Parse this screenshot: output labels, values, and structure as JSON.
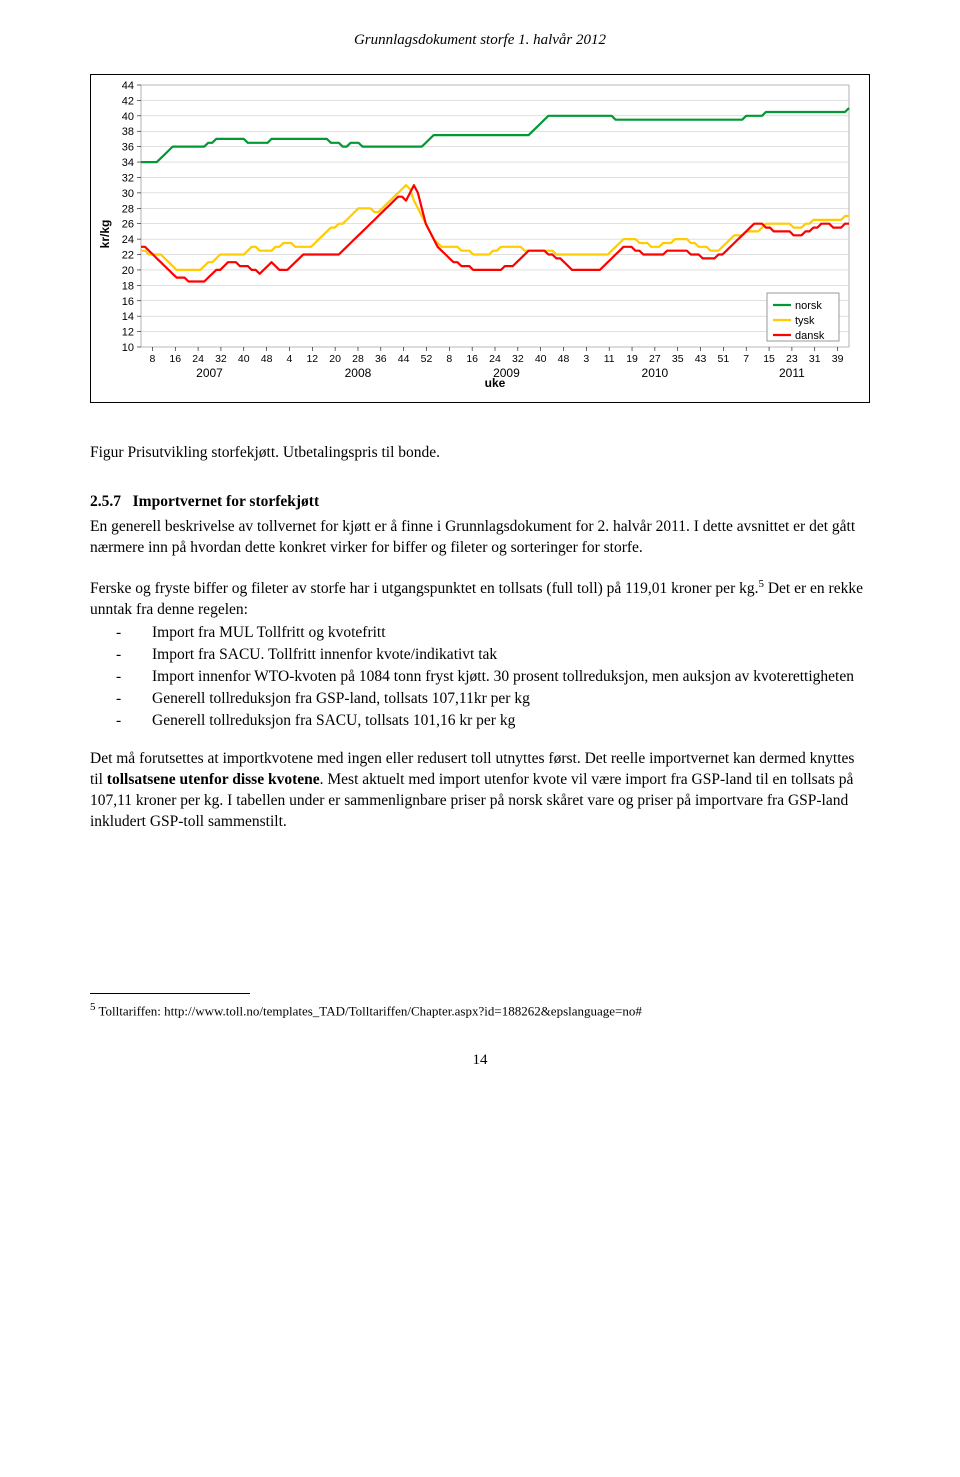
{
  "header": {
    "title": "Grunnlagsdokument storfe 1. halvår 2012"
  },
  "chart": {
    "type": "line",
    "ylabel": "kr/kg",
    "xlabel": "uke",
    "ylim": [
      10,
      44
    ],
    "yticks": [
      10,
      12,
      14,
      16,
      18,
      20,
      22,
      24,
      26,
      28,
      30,
      32,
      34,
      36,
      38,
      40,
      42,
      44
    ],
    "x_groups": [
      {
        "year": "2007",
        "ticks": [
          "8",
          "16",
          "24",
          "32",
          "40",
          "48"
        ]
      },
      {
        "year": "2008",
        "ticks": [
          "4",
          "12",
          "20",
          "28",
          "36",
          "44",
          "52"
        ]
      },
      {
        "year": "2009",
        "ticks": [
          "8",
          "16",
          "24",
          "32",
          "40",
          "48"
        ]
      },
      {
        "year": "2010",
        "ticks": [
          "3",
          "11",
          "19",
          "27",
          "35",
          "43",
          "51"
        ]
      },
      {
        "year": "2011",
        "ticks": [
          "7",
          "15",
          "23",
          "31",
          "39"
        ]
      }
    ],
    "n_points": 180,
    "series": [
      {
        "name": "norsk",
        "color": "#009933",
        "width": 2.2,
        "y": [
          34,
          34,
          34,
          34,
          34,
          34.5,
          35,
          35.5,
          36,
          36,
          36,
          36,
          36,
          36,
          36,
          36,
          36,
          36.5,
          36.5,
          37,
          37,
          37,
          37,
          37,
          37,
          37,
          37,
          36.5,
          36.5,
          36.5,
          36.5,
          36.5,
          36.5,
          37,
          37,
          37,
          37,
          37,
          37,
          37,
          37,
          37,
          37,
          37,
          37,
          37,
          37,
          37,
          36.5,
          36.5,
          36.5,
          36,
          36,
          36.5,
          36.5,
          36.5,
          36,
          36,
          36,
          36,
          36,
          36,
          36,
          36,
          36,
          36,
          36,
          36,
          36,
          36,
          36,
          36,
          36.5,
          37,
          37.5,
          37.5,
          37.5,
          37.5,
          37.5,
          37.5,
          37.5,
          37.5,
          37.5,
          37.5,
          37.5,
          37.5,
          37.5,
          37.5,
          37.5,
          37.5,
          37.5,
          37.5,
          37.5,
          37.5,
          37.5,
          37.5,
          37.5,
          37.5,
          37.5,
          38,
          38.5,
          39,
          39.5,
          40,
          40,
          40,
          40,
          40,
          40,
          40,
          40,
          40,
          40,
          40,
          40,
          40,
          40,
          40,
          40,
          40,
          39.5,
          39.5,
          39.5,
          39.5,
          39.5,
          39.5,
          39.5,
          39.5,
          39.5,
          39.5,
          39.5,
          39.5,
          39.5,
          39.5,
          39.5,
          39.5,
          39.5,
          39.5,
          39.5,
          39.5,
          39.5,
          39.5,
          39.5,
          39.5,
          39.5,
          39.5,
          39.5,
          39.5,
          39.5,
          39.5,
          39.5,
          39.5,
          39.5,
          40,
          40,
          40,
          40,
          40,
          40.5,
          40.5,
          40.5,
          40.5,
          40.5,
          40.5,
          40.5,
          40.5,
          40.5,
          40.5,
          40.5,
          40.5,
          40.5,
          40.5,
          40.5,
          40.5,
          40.5,
          40.5,
          40.5,
          40.5,
          40.5,
          41
        ]
      },
      {
        "name": "tysk",
        "color": "#ffcc00",
        "width": 2.2,
        "y": [
          22.5,
          22.5,
          22,
          22,
          22,
          22,
          21.5,
          21,
          20.5,
          20,
          20,
          20,
          20,
          20,
          20,
          20,
          20.5,
          21,
          21,
          21.5,
          22,
          22,
          22,
          22,
          22,
          22,
          22,
          22.5,
          23,
          23,
          22.5,
          22.5,
          22.5,
          22.5,
          23,
          23,
          23.5,
          23.5,
          23.5,
          23,
          23,
          23,
          23,
          23,
          23.5,
          24,
          24.5,
          25,
          25.5,
          25.5,
          26,
          26,
          26.5,
          27,
          27.5,
          28,
          28,
          28,
          28,
          27.5,
          27.5,
          28,
          28.5,
          29,
          29.5,
          30,
          30.5,
          31,
          30.5,
          29,
          28,
          27,
          26,
          25,
          24,
          23.5,
          23,
          23,
          23,
          23,
          23,
          22.5,
          22.5,
          22.5,
          22,
          22,
          22,
          22,
          22,
          22.5,
          22.5,
          23,
          23,
          23,
          23,
          23,
          23,
          22.5,
          22.5,
          22.5,
          22.5,
          22.5,
          22.5,
          22.5,
          22.5,
          22,
          22,
          22,
          22,
          22,
          22,
          22,
          22,
          22,
          22,
          22,
          22,
          22,
          22,
          22.5,
          23,
          23.5,
          24,
          24,
          24,
          24,
          23.5,
          23.5,
          23.5,
          23,
          23,
          23,
          23.5,
          23.5,
          23.5,
          24,
          24,
          24,
          24,
          23.5,
          23.5,
          23,
          23,
          23,
          22.5,
          22.5,
          22.5,
          23,
          23.5,
          24,
          24.5,
          24.5,
          24.5,
          25,
          25,
          25,
          25,
          25.5,
          26,
          26,
          26,
          26,
          26,
          26,
          26,
          25.5,
          25.5,
          25.5,
          26,
          26,
          26.5,
          26.5,
          26.5,
          26.5,
          26.5,
          26.5,
          26.5,
          26.5,
          27,
          27
        ]
      },
      {
        "name": "dansk",
        "color": "#ff0000",
        "width": 2.2,
        "y": [
          23,
          23,
          22.5,
          22,
          21.5,
          21,
          20.5,
          20,
          19.5,
          19,
          19,
          19,
          18.5,
          18.5,
          18.5,
          18.5,
          18.5,
          19,
          19.5,
          20,
          20,
          20.5,
          21,
          21,
          21,
          20.5,
          20.5,
          20.5,
          20,
          20,
          19.5,
          20,
          20.5,
          21,
          20.5,
          20,
          20,
          20,
          20.5,
          21,
          21.5,
          22,
          22,
          22,
          22,
          22,
          22,
          22,
          22,
          22,
          22,
          22.5,
          23,
          23.5,
          24,
          24.5,
          25,
          25.5,
          26,
          26.5,
          27,
          27.5,
          28,
          28.5,
          29,
          29.5,
          29.5,
          29,
          30,
          31,
          30,
          28,
          26,
          25,
          24,
          23,
          22.5,
          22,
          21.5,
          21,
          21,
          20.5,
          20.5,
          20.5,
          20,
          20,
          20,
          20,
          20,
          20,
          20,
          20,
          20.5,
          20.5,
          20.5,
          21,
          21.5,
          22,
          22.5,
          22.5,
          22.5,
          22.5,
          22.5,
          22,
          22,
          21.5,
          21.5,
          21,
          20.5,
          20,
          20,
          20,
          20,
          20,
          20,
          20,
          20,
          20.5,
          21,
          21.5,
          22,
          22.5,
          23,
          23,
          23,
          22.5,
          22.5,
          22,
          22,
          22,
          22,
          22,
          22,
          22.5,
          22.5,
          22.5,
          22.5,
          22.5,
          22.5,
          22,
          22,
          22,
          21.5,
          21.5,
          21.5,
          21.5,
          22,
          22,
          22.5,
          23,
          23.5,
          24,
          24.5,
          25,
          25.5,
          26,
          26,
          26,
          25.5,
          25.5,
          25,
          25,
          25,
          25,
          25,
          24.5,
          24.5,
          24.5,
          25,
          25,
          25.5,
          25.5,
          26,
          26,
          26,
          25.5,
          25.5,
          25.5,
          26,
          26
        ]
      }
    ],
    "background_color": "#ffffff",
    "grid_color": "#c0c0c0",
    "legend_border": "#808080"
  },
  "fig_caption": "Figur  Prisutvikling storfekjøtt. Utbetalingspris til bonde.",
  "section": {
    "number": "2.5.7",
    "title": "Importvernet for storfekjøtt"
  },
  "paragraphs": {
    "p1": "En generell beskrivelse av tollvernet for kjøtt er å finne i Grunnlagsdokument for 2. halvår 2011. I dette avsnittet er det gått nærmere inn på hvordan dette konkret virker for biffer og fileter og sorteringer for storfe.",
    "p2a": "Ferske og fryste biffer og fileter av storfe har i utgangspunktet en tollsats (full toll) på 119,01 kroner per kg.",
    "p2b": " Det er en rekke unntak fra denne regelen:",
    "footref": "5",
    "p3a": "Det må forutsettes at importkvotene med ingen eller redusert toll utnyttes først. Det reelle importvernet kan dermed knyttes til ",
    "p3bold": "tollsatsene utenfor disse kvotene",
    "p3b": ". Mest aktuelt med import utenfor kvote vil være import fra GSP-land til en tollsats på 107,11 kroner per kg. I tabellen under er sammenlignbare priser på norsk skåret vare og priser på importvare fra GSP-land inkludert GSP-toll sammenstilt."
  },
  "bullets": {
    "b1": "Import fra MUL Tollfritt og kvotefritt",
    "b2": "Import fra SACU. Tollfritt innenfor kvote/indikativt tak",
    "b3": "Import innenfor WTO-kvoten på 1084 tonn fryst kjøtt. 30 prosent tollreduksjon, men auksjon av kvoterettigheten",
    "b4": "Generell tollreduksjon fra GSP-land, tollsats 107,11kr per kg",
    "b5": "Generell tollreduksjon fra SACU, tollsats 101,16 kr per kg"
  },
  "footnote": {
    "num": "5",
    "text": " Tolltariffen: http://www.toll.no/templates_TAD/Tolltariffen/Chapter.aspx?id=188262&epslanguage=no#"
  },
  "page_number": "14"
}
